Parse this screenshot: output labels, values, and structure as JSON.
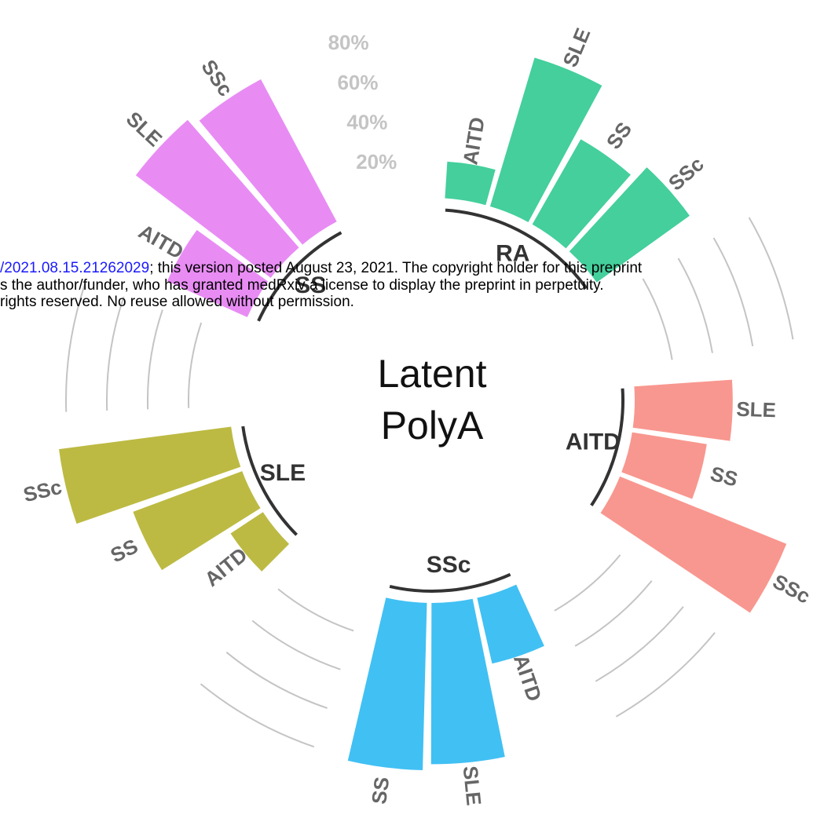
{
  "chart_data": {
    "type": "radial_bar",
    "title": [
      "Latent",
      "PolyA"
    ],
    "ylim": [
      0,
      100
    ],
    "yticks": [
      {
        "value": 20,
        "label": "20%"
      },
      {
        "value": 40,
        "label": "40%"
      },
      {
        "value": 60,
        "label": "60%"
      },
      {
        "value": 80,
        "label": "80%"
      }
    ],
    "grid": true,
    "groups": [
      {
        "name": "RA",
        "color": "#44cf9c",
        "categories": [
          "AITD",
          "SLE",
          "SS",
          "SSc"
        ],
        "values": [
          18,
          76,
          48,
          56
        ]
      },
      {
        "name": "AITD",
        "color": "#f8978f",
        "categories": [
          "SLE",
          "SS",
          "SSc"
        ],
        "values": [
          48,
          37,
          88
        ]
      },
      {
        "name": "SSc",
        "color": "#41c0f3",
        "categories": [
          "AITD",
          "SLE",
          "SS"
        ],
        "values": [
          33,
          79,
          82
        ]
      },
      {
        "name": "SLE",
        "color": "#bcba42",
        "categories": [
          "AITD",
          "SS",
          "SSc"
        ],
        "values": [
          19,
          57,
          85
        ]
      },
      {
        "name": "SS",
        "color": "#e88cf4",
        "categories": [
          "AITD",
          "SLE",
          "SSc"
        ],
        "values": [
          43,
          83,
          79
        ]
      }
    ]
  },
  "watermark": {
    "link": "/2021.08.15.21262029",
    "lines": [
      "; this version posted August 23, 2021. The copyright holder for this preprint",
      "s the author/funder, who has granted medRxiv a license to display the preprint in perpetuity.",
      " rights reserved. No reuse allowed without permission."
    ]
  }
}
